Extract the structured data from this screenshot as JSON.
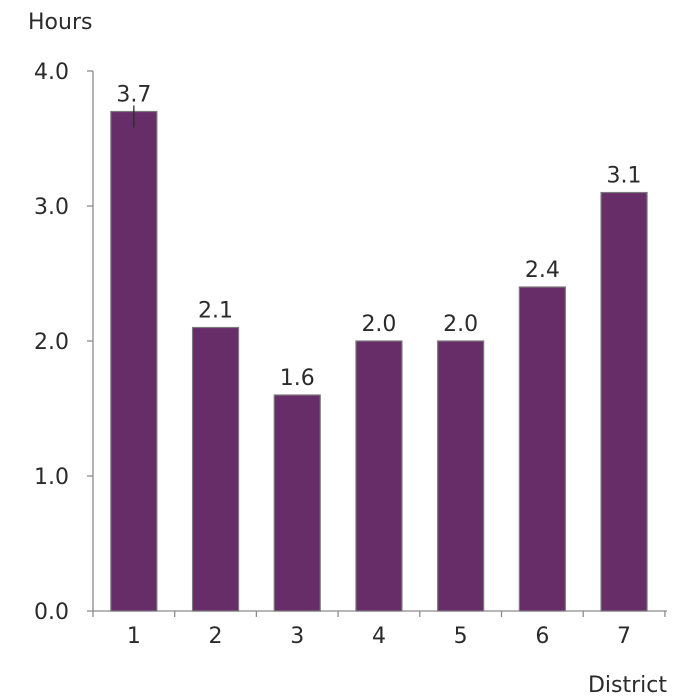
{
  "chart_data": {
    "type": "bar",
    "title": "",
    "ylabel": "Hours",
    "xlabel": "District",
    "categories": [
      "1",
      "2",
      "3",
      "4",
      "5",
      "6",
      "7"
    ],
    "values": [
      3.7,
      2.1,
      1.6,
      2.0,
      2.0,
      2.4,
      3.1
    ],
    "data_labels": [
      "3.7",
      "2.1",
      "1.6",
      "2.0",
      "2.0",
      "2.4",
      "3.1"
    ],
    "ylim": [
      0,
      4
    ],
    "yticks": [
      0,
      1,
      2,
      3,
      4
    ],
    "ytick_labels": [
      "0.0",
      "1.0",
      "2.0",
      "3.0",
      "4.0"
    ],
    "grid": false,
    "legend": "none",
    "bar_color": "#662d69"
  }
}
